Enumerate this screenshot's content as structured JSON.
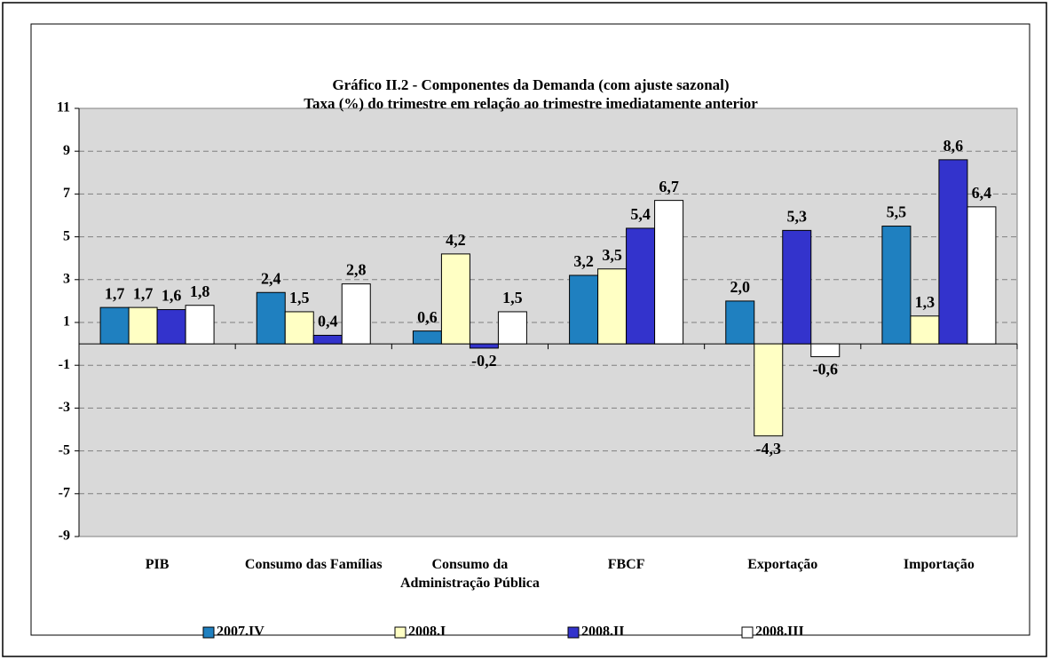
{
  "chart_data": {
    "type": "bar",
    "title": "Gráfico II.2 - Componentes da Demanda (com ajuste sazonal)",
    "subtitle": "Taxa (%) do trimestre em relação ao trimestre imediatamente anterior",
    "categories": [
      "PIB",
      "Consumo das Famílias",
      "Consumo da Administração Pública",
      "FBCF",
      "Exportação",
      "Importação"
    ],
    "series": [
      {
        "name": "2007.IV",
        "color": "#1f80c0",
        "values": [
          1.7,
          2.4,
          0.6,
          3.2,
          2.0,
          5.5
        ],
        "value_labels": [
          "1,7",
          "2,4",
          "0,6",
          "3,2",
          "2,0",
          "5,5"
        ]
      },
      {
        "name": "2008.I",
        "color": "#ffffc4",
        "values": [
          1.7,
          1.5,
          4.2,
          3.5,
          -4.3,
          1.3
        ],
        "value_labels": [
          "1,7",
          "1,5",
          "4,2",
          "3,5",
          "-4,3",
          "1,3"
        ]
      },
      {
        "name": "2008.II",
        "color": "#3333cc",
        "values": [
          1.6,
          0.4,
          -0.2,
          5.4,
          5.3,
          8.6
        ],
        "value_labels": [
          "1,6",
          "0,4",
          "-0,2",
          "5,4",
          "5,3",
          "8,6"
        ]
      },
      {
        "name": "2008.III",
        "color": "#ffffff",
        "values": [
          1.8,
          2.8,
          1.5,
          6.7,
          -0.6,
          6.4
        ],
        "value_labels": [
          "1,8",
          "2,8",
          "1,5",
          "6,7",
          "-0,6",
          "6,4"
        ]
      }
    ],
    "ylim": [
      -9,
      11
    ],
    "yticks": [
      -9,
      -7,
      -5,
      -3,
      -1,
      1,
      3,
      5,
      7,
      9,
      11
    ],
    "grid": true,
    "legend": "bottom"
  }
}
